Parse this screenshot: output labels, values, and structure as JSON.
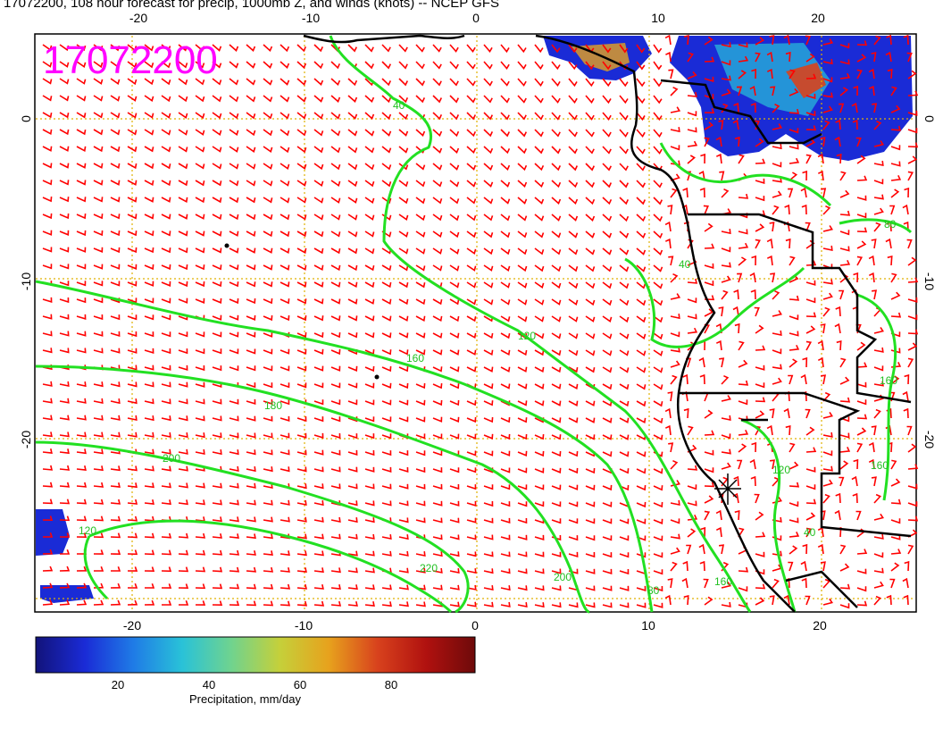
{
  "header": {
    "title": "17072200, 108 hour forecast for precip, 1000mb Z, and winds (knots) -- NCEP GFS"
  },
  "stamp": "17072200",
  "axes": {
    "lon_ticks": [
      "-20",
      "-10",
      "0",
      "10",
      "20"
    ],
    "lat_ticks": [
      "0",
      "-10",
      "-20"
    ],
    "lon_range": [
      -26,
      25.5
    ],
    "lat_range": [
      -30,
      5
    ]
  },
  "contour_labels": [
    "40",
    "80",
    "40",
    "120",
    "160",
    "180",
    "200",
    "220",
    "200",
    "160",
    "120",
    "80",
    "160",
    "120",
    "40",
    "160"
  ],
  "colorbar": {
    "label": "Precipitation, mm/day",
    "ticks": [
      "20",
      "40",
      "60",
      "80"
    ],
    "range": [
      0,
      100
    ],
    "colors": [
      "#12137a",
      "#1a2bd6",
      "#1f7be6",
      "#29c2d8",
      "#6fd38f",
      "#c5d03a",
      "#e7a21d",
      "#d8421d",
      "#b0110f",
      "#6e0a0a"
    ]
  },
  "colors": {
    "wind_barbs": "#ff0000",
    "contours": "#22e022",
    "gridlines": "#e0b000",
    "coastline": "#000000",
    "stamp": "#ff00ff"
  }
}
